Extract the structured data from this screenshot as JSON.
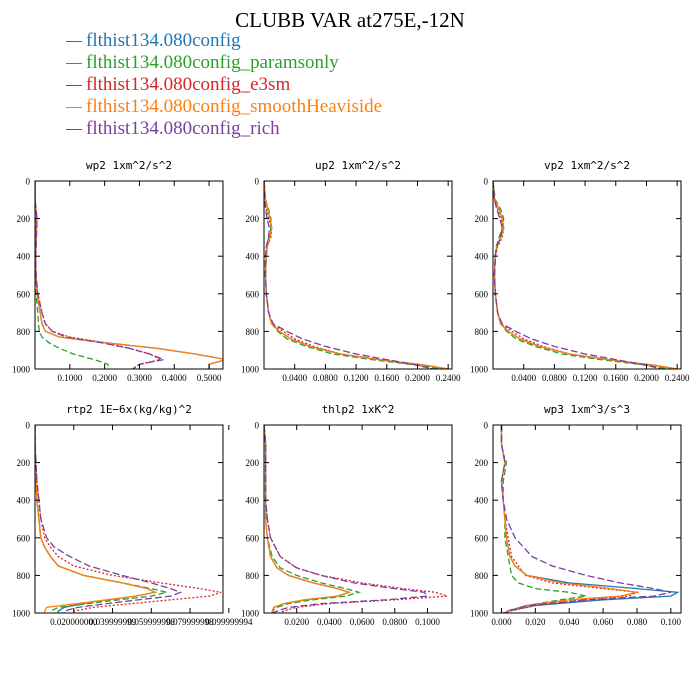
{
  "title": "CLUBB VAR at275E,-12N",
  "legend": [
    {
      "label": "flthist134.080config",
      "color": "#1f77b4"
    },
    {
      "label": "flthist134.080config_paramsonly",
      "color": "#2ca02c"
    },
    {
      "label": "flthist134.080config_e3sm",
      "color": "#d62728"
    },
    {
      "label": "flthist134.080config_smoothHeaviside",
      "color": "#ff7f0e"
    },
    {
      "label": "flthist134.080config_rich",
      "color": "#7b3f9e"
    }
  ],
  "chart_data": [
    {
      "type": "line",
      "title": "wp2  1xm^2/s^2",
      "xlim": [
        0,
        0.54
      ],
      "ylim": [
        1000,
        0
      ],
      "xticks": [
        "0.1000",
        "0.2000",
        "0.3000",
        "0.4000",
        "0.5000"
      ],
      "xtick_values": [
        0.1,
        0.2,
        0.3,
        0.4,
        0.5
      ],
      "yticks": [
        "0",
        "200",
        "400",
        "600",
        "800",
        "1000"
      ],
      "y": [
        0,
        100,
        200,
        300,
        400,
        500,
        600,
        700,
        760,
        800,
        830,
        860,
        890,
        920,
        950,
        975,
        1000
      ],
      "series": [
        {
          "values": [
            0,
            0,
            0.005,
            0.004,
            0.002,
            0.003,
            0.006,
            0.015,
            0.02,
            0.03,
            0.07,
            0.2,
            0.35,
            0.46,
            0.55,
            0.5,
            0.5
          ]
        },
        {
          "values": [
            0,
            0,
            0.002,
            0.002,
            0.001,
            0.001,
            0.003,
            0.008,
            0.01,
            0.012,
            0.02,
            0.04,
            0.07,
            0.11,
            0.17,
            0.21,
            0.21
          ]
        },
        {
          "values": [
            0,
            0,
            0.004,
            0.003,
            0.002,
            0.003,
            0.008,
            0.02,
            0.03,
            0.05,
            0.1,
            0.2,
            0.27,
            0.33,
            0.36,
            0.3,
            0.28
          ]
        },
        {
          "values": [
            0,
            0,
            0.005,
            0.004,
            0.002,
            0.003,
            0.006,
            0.015,
            0.02,
            0.03,
            0.07,
            0.2,
            0.35,
            0.46,
            0.55,
            0.5,
            0.5
          ]
        },
        {
          "values": [
            0,
            0,
            0.006,
            0.004,
            0.002,
            0.003,
            0.008,
            0.02,
            0.03,
            0.05,
            0.09,
            0.19,
            0.27,
            0.33,
            0.37,
            0.3,
            0.28
          ]
        }
      ]
    },
    {
      "type": "line",
      "title": "up2  1xm^2/s^2",
      "xlim": [
        0,
        0.245
      ],
      "ylim": [
        1000,
        0
      ],
      "xticks": [
        "0.0400",
        "0.0800",
        "0.1200",
        "0.1600",
        "0.2000",
        "0.2400"
      ],
      "xtick_values": [
        0.04,
        0.08,
        0.12,
        0.16,
        0.2,
        0.24
      ],
      "yticks": [
        "0",
        "200",
        "400",
        "600",
        "800",
        "1000"
      ],
      "y": [
        0,
        100,
        150,
        200,
        250,
        300,
        350,
        400,
        500,
        600,
        700,
        760,
        800,
        840,
        880,
        920,
        950,
        980,
        1000
      ],
      "series": [
        {
          "values": [
            0,
            0.002,
            0.005,
            0.008,
            0.01,
            0.008,
            0.004,
            0.003,
            0.002,
            0.003,
            0.006,
            0.01,
            0.02,
            0.035,
            0.06,
            0.1,
            0.15,
            0.21,
            0.24
          ]
        },
        {
          "values": [
            0,
            0.002,
            0.006,
            0.009,
            0.009,
            0.006,
            0.003,
            0.002,
            0.002,
            0.003,
            0.006,
            0.01,
            0.018,
            0.03,
            0.055,
            0.09,
            0.14,
            0.2,
            0.23
          ]
        },
        {
          "values": [
            0,
            0.001,
            0.003,
            0.006,
            0.01,
            0.009,
            0.004,
            0.003,
            0.002,
            0.003,
            0.006,
            0.01,
            0.025,
            0.04,
            0.065,
            0.1,
            0.15,
            0.2,
            0.22
          ]
        },
        {
          "values": [
            0,
            0.002,
            0.005,
            0.008,
            0.01,
            0.008,
            0.004,
            0.003,
            0.002,
            0.003,
            0.006,
            0.01,
            0.02,
            0.035,
            0.06,
            0.1,
            0.15,
            0.21,
            0.24
          ]
        },
        {
          "values": [
            0,
            0.001,
            0.002,
            0.004,
            0.007,
            0.006,
            0.003,
            0.002,
            0.002,
            0.003,
            0.006,
            0.012,
            0.03,
            0.05,
            0.08,
            0.12,
            0.16,
            0.2,
            0.22
          ]
        }
      ]
    },
    {
      "type": "line",
      "title": "vp2  1xm^2/s^2",
      "xlim": [
        0,
        0.245
      ],
      "ylim": [
        1000,
        0
      ],
      "xticks": [
        "0.0400",
        "0.0800",
        "0.1200",
        "0.1600",
        "0.2000",
        "0.2400"
      ],
      "xtick_values": [
        0.04,
        0.08,
        0.12,
        0.16,
        0.2,
        0.24
      ],
      "yticks": [
        "0",
        "200",
        "400",
        "600",
        "800",
        "1000"
      ],
      "y": [
        0,
        100,
        150,
        200,
        250,
        300,
        350,
        400,
        500,
        600,
        700,
        760,
        800,
        840,
        880,
        920,
        950,
        980,
        1000
      ],
      "series": [
        {
          "values": [
            0,
            0.002,
            0.008,
            0.012,
            0.014,
            0.01,
            0.005,
            0.003,
            0.002,
            0.003,
            0.006,
            0.01,
            0.02,
            0.035,
            0.06,
            0.1,
            0.15,
            0.21,
            0.24
          ]
        },
        {
          "values": [
            0,
            0.003,
            0.01,
            0.014,
            0.012,
            0.008,
            0.004,
            0.003,
            0.002,
            0.003,
            0.006,
            0.01,
            0.018,
            0.03,
            0.055,
            0.09,
            0.14,
            0.2,
            0.23
          ]
        },
        {
          "values": [
            0,
            0.002,
            0.006,
            0.01,
            0.014,
            0.012,
            0.006,
            0.003,
            0.002,
            0.003,
            0.006,
            0.01,
            0.025,
            0.04,
            0.065,
            0.1,
            0.15,
            0.2,
            0.22
          ]
        },
        {
          "values": [
            0,
            0.002,
            0.008,
            0.012,
            0.014,
            0.01,
            0.005,
            0.003,
            0.002,
            0.003,
            0.006,
            0.01,
            0.02,
            0.035,
            0.06,
            0.1,
            0.15,
            0.21,
            0.24
          ]
        },
        {
          "values": [
            0,
            0.002,
            0.005,
            0.009,
            0.012,
            0.01,
            0.005,
            0.003,
            0.002,
            0.003,
            0.006,
            0.012,
            0.03,
            0.05,
            0.08,
            0.12,
            0.16,
            0.2,
            0.22
          ]
        }
      ]
    },
    {
      "type": "line",
      "title": "rtp2  1E−6x(kg/kg)^2",
      "xlim": [
        0,
        0.097
      ],
      "ylim": [
        1000,
        0
      ],
      "xticks": [
        "0.020000000",
        "0.039999999",
        "0.059999998",
        "0.079999998",
        "0.099999994"
      ],
      "xtick_values": [
        0.02,
        0.04,
        0.06,
        0.08,
        0.1
      ],
      "yticks": [
        "0",
        "200",
        "400",
        "600",
        "800",
        "1000"
      ],
      "y": [
        0,
        100,
        200,
        300,
        400,
        500,
        600,
        650,
        700,
        750,
        800,
        840,
        870,
        890,
        910,
        940,
        970,
        990,
        1000
      ],
      "series": [
        {
          "values": [
            0,
            0,
            0,
            0.0005,
            0.001,
            0.002,
            0.003,
            0.005,
            0.008,
            0.012,
            0.025,
            0.045,
            0.058,
            0.062,
            0.052,
            0.03,
            0.015,
            0.012,
            0.012
          ]
        },
        {
          "values": [
            0,
            0,
            0,
            0.0005,
            0.001,
            0.002,
            0.003,
            0.005,
            0.008,
            0.012,
            0.025,
            0.045,
            0.06,
            0.068,
            0.06,
            0.035,
            0.012,
            0.008,
            0.008
          ]
        },
        {
          "values": [
            0,
            0,
            0.0005,
            0.001,
            0.002,
            0.003,
            0.005,
            0.008,
            0.012,
            0.02,
            0.04,
            0.065,
            0.085,
            0.096,
            0.09,
            0.06,
            0.03,
            0.02,
            0.02
          ]
        },
        {
          "values": [
            0,
            0,
            0,
            0.0005,
            0.001,
            0.002,
            0.003,
            0.005,
            0.008,
            0.012,
            0.025,
            0.045,
            0.058,
            0.062,
            0.052,
            0.03,
            0.006,
            0.005,
            0.005
          ]
        },
        {
          "values": [
            0,
            0,
            0.0005,
            0.001,
            0.002,
            0.003,
            0.006,
            0.01,
            0.018,
            0.028,
            0.045,
            0.06,
            0.07,
            0.075,
            0.07,
            0.045,
            0.022,
            0.015,
            0.015
          ]
        }
      ]
    },
    {
      "type": "line",
      "title": "thlp2  1xK^2",
      "xlim": [
        0,
        0.115
      ],
      "ylim": [
        1000,
        0
      ],
      "xticks": [
        "0.0200",
        "0.0400",
        "0.0600",
        "0.0800",
        "0.1000"
      ],
      "xtick_values": [
        0.02,
        0.04,
        0.06,
        0.08,
        0.1
      ],
      "yticks": [
        "0",
        "200",
        "400",
        "600",
        "800",
        "1000"
      ],
      "y": [
        0,
        100,
        200,
        300,
        400,
        500,
        600,
        700,
        760,
        800,
        840,
        870,
        890,
        910,
        930,
        950,
        970,
        990,
        1000
      ],
      "series": [
        {
          "values": [
            0,
            0.001,
            0.001,
            0.001,
            0.001,
            0.001,
            0.002,
            0.004,
            0.008,
            0.015,
            0.03,
            0.045,
            0.052,
            0.045,
            0.025,
            0.012,
            0.006,
            0.005,
            0.005
          ]
        },
        {
          "values": [
            0,
            0.001,
            0.001,
            0.001,
            0.001,
            0.001,
            0.002,
            0.005,
            0.01,
            0.02,
            0.035,
            0.05,
            0.058,
            0.05,
            0.03,
            0.015,
            0.008,
            0.005,
            0.005
          ]
        },
        {
          "values": [
            0,
            0.001,
            0.001,
            0.001,
            0.001,
            0.002,
            0.004,
            0.01,
            0.02,
            0.035,
            0.06,
            0.085,
            0.105,
            0.112,
            0.08,
            0.04,
            0.02,
            0.012,
            0.01
          ]
        },
        {
          "values": [
            0,
            0.001,
            0.001,
            0.001,
            0.001,
            0.001,
            0.002,
            0.004,
            0.008,
            0.015,
            0.03,
            0.045,
            0.052,
            0.045,
            0.025,
            0.012,
            0.006,
            0.005,
            0.005
          ]
        },
        {
          "values": [
            0,
            0.001,
            0.001,
            0.001,
            0.001,
            0.002,
            0.004,
            0.01,
            0.02,
            0.035,
            0.055,
            0.08,
            0.098,
            0.1,
            0.075,
            0.035,
            0.015,
            0.008,
            0.005
          ]
        }
      ]
    },
    {
      "type": "line",
      "title": "wp3  1xm^3/s^3",
      "xlim": [
        -0.005,
        0.106
      ],
      "ylim": [
        1000,
        0
      ],
      "xticks": [
        "0.000",
        "0.020",
        "0.040",
        "0.060",
        "0.080",
        "0.100"
      ],
      "xtick_values": [
        0,
        0.02,
        0.04,
        0.06,
        0.08,
        0.1
      ],
      "yticks": [
        "0",
        "200",
        "400",
        "600",
        "800",
        "1000"
      ],
      "y": [
        0,
        100,
        150,
        200,
        250,
        300,
        400,
        500,
        600,
        700,
        750,
        800,
        840,
        870,
        890,
        910,
        930,
        960,
        990,
        1000
      ],
      "series": [
        {
          "values": [
            0,
            0,
            0.001,
            0.002,
            0.001,
            0,
            0.001,
            0.002,
            0.003,
            0.005,
            0.008,
            0.015,
            0.04,
            0.08,
            0.104,
            0.1,
            0.06,
            0.02,
            0.004,
            0.002
          ]
        },
        {
          "values": [
            0,
            0,
            0.001,
            0.003,
            0.002,
            0.001,
            0.001,
            0.002,
            0.002,
            0.004,
            0.005,
            0.006,
            0.01,
            0.02,
            0.04,
            0.05,
            0.035,
            0.015,
            0.003,
            0.001
          ]
        },
        {
          "values": [
            0,
            0,
            0.001,
            0.002,
            0.001,
            0,
            0.001,
            0.002,
            0.004,
            0.006,
            0.01,
            0.014,
            0.03,
            0.06,
            0.08,
            0.075,
            0.05,
            0.02,
            0.005,
            0.003
          ]
        },
        {
          "values": [
            0,
            0,
            0.001,
            0.002,
            0.001,
            0,
            0.001,
            0.002,
            0.003,
            0.005,
            0.008,
            0.015,
            0.035,
            0.065,
            0.08,
            0.07,
            0.04,
            0.015,
            0.004,
            0.002
          ]
        },
        {
          "values": [
            0,
            0,
            0.001,
            0.002,
            0.001,
            0,
            0.001,
            0.003,
            0.008,
            0.018,
            0.03,
            0.05,
            0.07,
            0.09,
            0.1,
            0.09,
            0.05,
            0.015,
            0.004,
            0.002
          ]
        }
      ]
    }
  ]
}
